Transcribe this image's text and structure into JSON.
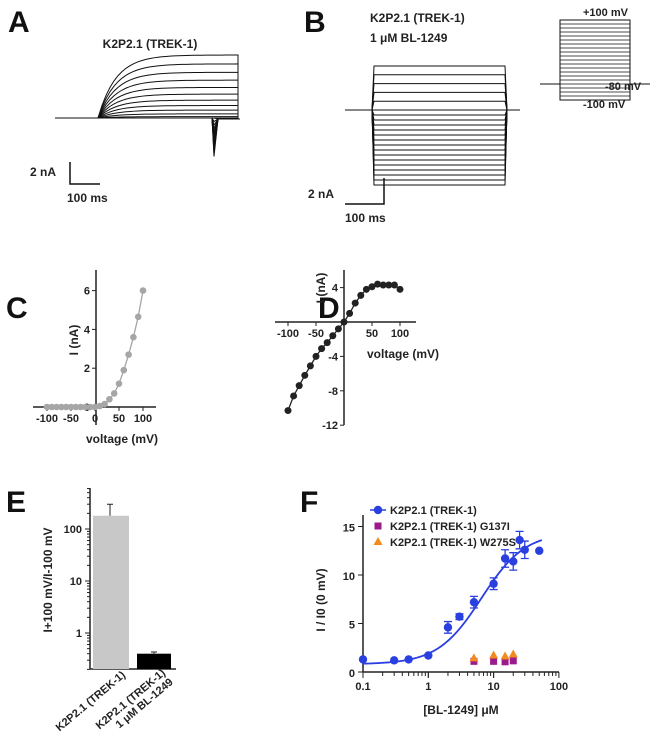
{
  "panels": {
    "A": {
      "label": "A",
      "title": "K2P2.1 (TREK-1)",
      "scale_current": "2 nA",
      "scale_time": "100 ms"
    },
    "B": {
      "label": "B",
      "title_line1": "K2P2.1 (TREK-1)",
      "title_line2": "1 μM BL-1249",
      "protocol": [
        "+100 mV",
        "-80 mV",
        "-100 mV"
      ],
      "scale_current": "2 nA",
      "scale_time": "100 ms"
    },
    "C": {
      "label": "C"
    },
    "D": {
      "label": "D"
    },
    "E": {
      "label": "E"
    },
    "F": {
      "label": "F"
    }
  },
  "chart_data": [
    {
      "panel": "C",
      "type": "line",
      "xlabel": "voltage (mV)",
      "ylabel": "I (nA)",
      "xlim": [
        -120,
        120
      ],
      "ylim": [
        -0.3,
        7
      ],
      "xticks": [
        -100,
        -50,
        0,
        50,
        100
      ],
      "yticks": [
        0,
        2,
        4,
        6
      ],
      "color": "#a6a6a6",
      "x": [
        -100,
        -90,
        -80,
        -70,
        -60,
        -50,
        -40,
        -30,
        -20,
        -10,
        0,
        10,
        20,
        30,
        40,
        50,
        60,
        70,
        80,
        90,
        100
      ],
      "y": [
        0,
        0,
        0,
        0,
        0,
        0,
        0,
        0,
        0,
        0,
        0,
        0.05,
        0.15,
        0.4,
        0.7,
        1.2,
        1.9,
        2.7,
        3.6,
        4.65,
        6.0
      ]
    },
    {
      "panel": "D",
      "type": "line",
      "xlabel": "voltage (mV)",
      "ylabel": "I (nA)",
      "xlim": [
        -120,
        120
      ],
      "ylim": [
        -12,
        6
      ],
      "xticks": [
        -100,
        -50,
        50,
        100
      ],
      "yticks": [
        4,
        -4,
        -8,
        -12
      ],
      "color": "#222222",
      "x": [
        -100,
        -90,
        -80,
        -70,
        -60,
        -50,
        -40,
        -30,
        -20,
        -10,
        0,
        10,
        20,
        30,
        40,
        50,
        60,
        70,
        80,
        90,
        100
      ],
      "y": [
        -10.3,
        -8.6,
        -7.4,
        -6.2,
        -5.1,
        -4.0,
        -3.1,
        -2.4,
        -1.6,
        -0.8,
        0,
        1.0,
        2.2,
        3.1,
        3.8,
        4.1,
        4.4,
        4.3,
        4.3,
        4.3,
        3.8
      ]
    },
    {
      "panel": "E",
      "type": "bar",
      "ylabel": "I+100 mV/I-100 mV",
      "yscale": "log",
      "ylim": [
        0.2,
        600
      ],
      "yticks": [
        "1",
        "10",
        "100"
      ],
      "categories": [
        "K2P2.1 (TREK-1)",
        "K2P2.1 (TREK-1) 1 μM BL-1249"
      ],
      "values": [
        180,
        0.4
      ],
      "errors": [
        120,
        0.03
      ],
      "colors": [
        "#c8c8c8",
        "#000000"
      ]
    },
    {
      "panel": "F",
      "type": "scatter",
      "xlabel": "[BL-1249] μM",
      "ylabel": "I / I0 (0 mV)",
      "xscale": "log",
      "xlim": [
        0.1,
        100
      ],
      "ylim": [
        0,
        16
      ],
      "xticks": [
        "0.1",
        "1",
        "10",
        "100"
      ],
      "yticks": [
        "0",
        "5",
        "10",
        "15"
      ],
      "legend": "top-left",
      "series": [
        {
          "name": "K2P2.1 (TREK-1)",
          "color": "#2a3fe0",
          "marker": "circle",
          "fit": true,
          "x": [
            0.1,
            0.3,
            0.5,
            1,
            2,
            3,
            5,
            10,
            15,
            20,
            25,
            30,
            50
          ],
          "y": [
            1.3,
            1.2,
            1.3,
            1.7,
            4.6,
            5.7,
            7.2,
            9.1,
            11.7,
            11.4,
            13.6,
            12.6,
            12.5
          ],
          "err": [
            0,
            0,
            0,
            0,
            0.6,
            0.3,
            0.6,
            0.6,
            0.9,
            0.9,
            0.9,
            0.9,
            0
          ]
        },
        {
          "name": "K2P2.1 (TREK-1) G137I",
          "color": "#9b1a8c",
          "marker": "square",
          "x": [
            5,
            10,
            15,
            20
          ],
          "y": [
            1.1,
            1.1,
            1.05,
            1.15
          ]
        },
        {
          "name": "K2P2.1 (TREK-1) W275S",
          "color": "#f28a1e",
          "marker": "triangle",
          "x": [
            5,
            10,
            15,
            20
          ],
          "y": [
            1.4,
            1.7,
            1.6,
            1.8
          ]
        }
      ]
    }
  ]
}
